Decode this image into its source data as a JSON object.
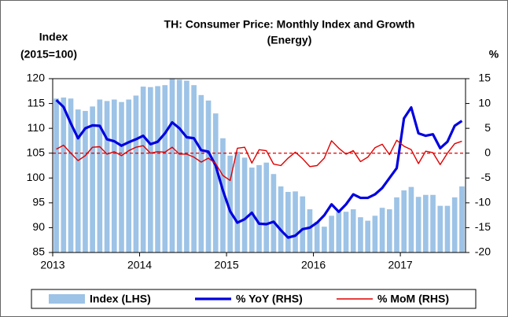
{
  "chart_data": {
    "type": "bar_line_combo",
    "title": [
      "TH: Consumer Price: Monthly Index and Growth",
      "(Energy)"
    ],
    "y_label": [
      "Index",
      "(2015=100)"
    ],
    "y2_label": "%",
    "categories": [
      "2013",
      null,
      null,
      null,
      null,
      null,
      null,
      null,
      null,
      null,
      null,
      null,
      "2014",
      null,
      null,
      null,
      null,
      null,
      null,
      null,
      null,
      null,
      null,
      null,
      "2015",
      null,
      null,
      null,
      null,
      null,
      null,
      null,
      null,
      null,
      null,
      null,
      "2016",
      null,
      null,
      null,
      null,
      null,
      null,
      null,
      null,
      null,
      null,
      null,
      "2017",
      null,
      null,
      null,
      null,
      null,
      null,
      null,
      null
    ],
    "series": [
      {
        "name": "Index (LHS)",
        "kind": "bar",
        "axis": "y",
        "color": "#9dc3e6",
        "values": [
          116,
          116.2,
          116,
          113.8,
          113.5,
          114.4,
          115.8,
          115.5,
          115.8,
          115.3,
          115.8,
          116.6,
          118.4,
          118.3,
          118.5,
          118.7,
          120,
          119.8,
          119.6,
          118.7,
          116.7,
          115.6,
          113,
          108,
          104.5,
          105.3,
          104.1,
          102.1,
          102.6,
          103.1,
          100.8,
          98.3,
          97.2,
          97.3,
          96.3,
          93.7,
          91.2,
          90.2,
          92.4,
          93.2,
          93.2,
          93.7,
          92.1,
          91.4,
          92.4,
          94,
          93.7,
          96.1,
          97.5,
          98.2,
          96.2,
          96.6,
          96.6,
          94.4,
          94.4,
          96.1,
          98.3
        ]
      },
      {
        "name": "% YoY (RHS)",
        "kind": "line",
        "axis": "y2",
        "color": "#0000e0",
        "values": [
          10.7,
          9.3,
          6,
          3,
          5,
          5.6,
          5.5,
          2.8,
          2.4,
          1.5,
          2.2,
          2.8,
          3.5,
          1.8,
          2.3,
          4,
          6.2,
          5,
          3.2,
          3,
          0.6,
          0.3,
          -2.5,
          -7.5,
          -11.7,
          -14,
          -13.3,
          -12,
          -14.2,
          -14.3,
          -13.8,
          -15.5,
          -17,
          -16.6,
          -15.3,
          -15,
          -14,
          -12.5,
          -10.3,
          -11.8,
          -10.3,
          -8.3,
          -9,
          -9,
          -8.3,
          -7,
          -5,
          -3,
          7,
          9.2,
          4,
          3.5,
          3.8,
          1,
          2.3,
          5.5,
          6.5
        ]
      },
      {
        "name": "% MoM (RHS)",
        "kind": "line",
        "axis": "y2",
        "color": "#e00000",
        "values": [
          0.8,
          1.6,
          0,
          -1.5,
          -0.5,
          1.2,
          1.3,
          -0.2,
          0.3,
          -0.5,
          0.5,
          1.2,
          1.5,
          0,
          0.3,
          0.2,
          1.2,
          -0.2,
          -0.2,
          -0.8,
          -1.8,
          -1,
          -2.1,
          -4.5,
          -5.5,
          1,
          1.2,
          -2,
          0.7,
          0.5,
          -2.2,
          -2.5,
          -1,
          0.2,
          -1.1,
          -2.7,
          -2.5,
          -1,
          2.5,
          1,
          -0.2,
          0.5,
          -1.7,
          -0.8,
          1.1,
          1.8,
          -0.3,
          2.6,
          1.4,
          0.7,
          -2.1,
          0.4,
          0.1,
          -2.3,
          0,
          1.9,
          2.4
        ]
      }
    ],
    "ylim": [
      85,
      120
    ],
    "yticks": [
      85,
      90,
      95,
      100,
      105,
      110,
      115,
      120
    ],
    "y2lim": [
      -20,
      15
    ],
    "y2ticks": [
      -20,
      -15,
      -10,
      -5,
      0,
      5,
      10,
      15
    ],
    "y2_zero_line": true,
    "legend": "bottom"
  }
}
